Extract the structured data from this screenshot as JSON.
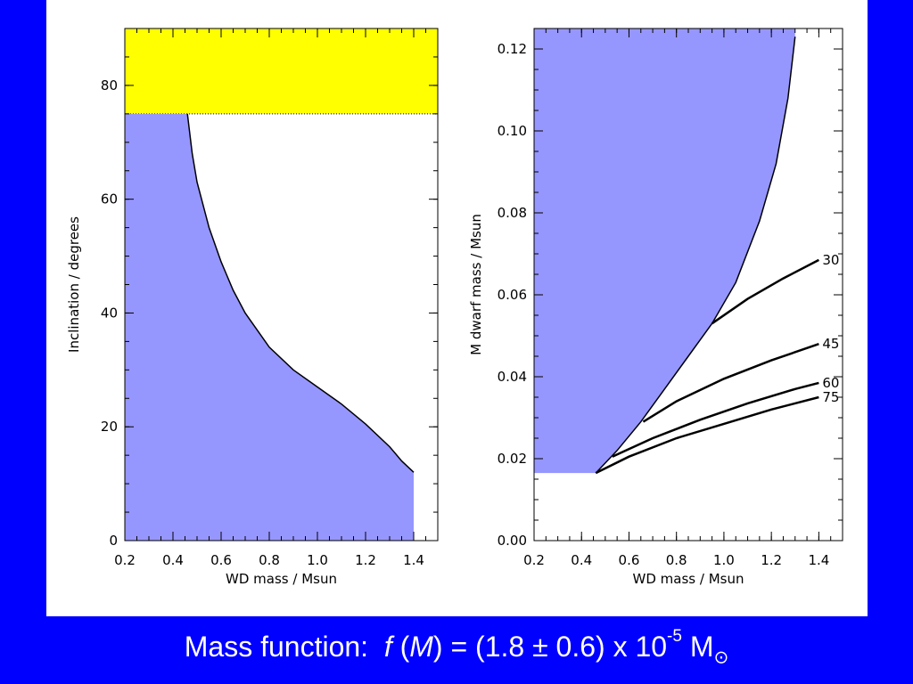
{
  "page": {
    "background": "#0000ff",
    "panel_background": "#ffffff"
  },
  "caption": {
    "prefix": "Mass function:",
    "f": "f",
    "open": "(",
    "M": "M",
    "equals": ") = (1.8 ± 0.6) x 10",
    "exponent": "-5",
    "unit": "M",
    "sun_symbol": "⊙"
  },
  "chart_data": [
    {
      "type": "area",
      "title": "",
      "xlabel": "WD mass / Msun",
      "ylabel": "Inclination / degrees",
      "xlim": [
        0.2,
        1.5
      ],
      "ylim": [
        0,
        90
      ],
      "xticks": [
        "0.2",
        "0.4",
        "0.6",
        "0.8",
        "1.0",
        "1.2",
        "1.4"
      ],
      "yticks": [
        "0",
        "20",
        "40",
        "60",
        "80"
      ],
      "colors": {
        "excluded": "#9696ff",
        "eclipse_region": "#ffff00",
        "line": "#000000"
      },
      "eclipse_region": {
        "y_from": 75,
        "y_to": 90,
        "x_from": 0.2,
        "x_to": 1.5
      },
      "boundary": {
        "x": [
          0.46,
          0.48,
          0.5,
          0.55,
          0.6,
          0.65,
          0.7,
          0.8,
          0.9,
          1.0,
          1.1,
          1.2,
          1.3,
          1.35,
          1.4
        ],
        "y": [
          75,
          68,
          63,
          55,
          49,
          44,
          40,
          34,
          30,
          27,
          24,
          20.5,
          16.5,
          14,
          12
        ]
      },
      "excluded_fill_below_boundary": true,
      "boundary_x_limit": 1.4
    },
    {
      "type": "line",
      "title": "",
      "xlabel": "WD mass / Msun",
      "ylabel": "M dwarf mass / Msun",
      "xlim": [
        0.2,
        1.5
      ],
      "ylim": [
        0.0,
        0.125
      ],
      "xticks": [
        "0.2",
        "0.4",
        "0.6",
        "0.8",
        "1.0",
        "1.2",
        "1.4"
      ],
      "yticks": [
        "0.00",
        "0.02",
        "0.04",
        "0.06",
        "0.08",
        "0.10",
        "0.12"
      ],
      "colors": {
        "excluded": "#9696ff",
        "line": "#000000"
      },
      "excluded_region": {
        "floor_y": 0.0165,
        "boundary_x": [
          0.46,
          0.55,
          0.65,
          0.75,
          0.85,
          0.95,
          1.05,
          1.15,
          1.22,
          1.27,
          1.3
        ],
        "boundary_y": [
          0.0165,
          0.022,
          0.029,
          0.037,
          0.045,
          0.053,
          0.063,
          0.078,
          0.092,
          0.108,
          0.123
        ]
      },
      "series": [
        {
          "name": "30",
          "x": [
            0.95,
            1.1,
            1.25,
            1.4
          ],
          "y": [
            0.053,
            0.059,
            0.064,
            0.0685
          ]
        },
        {
          "name": "45",
          "x": [
            0.66,
            0.8,
            1.0,
            1.2,
            1.4
          ],
          "y": [
            0.029,
            0.034,
            0.0395,
            0.044,
            0.048
          ]
        },
        {
          "name": "60",
          "x": [
            0.53,
            0.7,
            0.9,
            1.1,
            1.3,
            1.4
          ],
          "y": [
            0.0205,
            0.025,
            0.0295,
            0.0335,
            0.037,
            0.0385
          ]
        },
        {
          "name": "75",
          "x": [
            0.46,
            0.6,
            0.8,
            1.0,
            1.2,
            1.4
          ],
          "y": [
            0.0165,
            0.0205,
            0.025,
            0.0285,
            0.032,
            0.035
          ]
        }
      ]
    }
  ]
}
